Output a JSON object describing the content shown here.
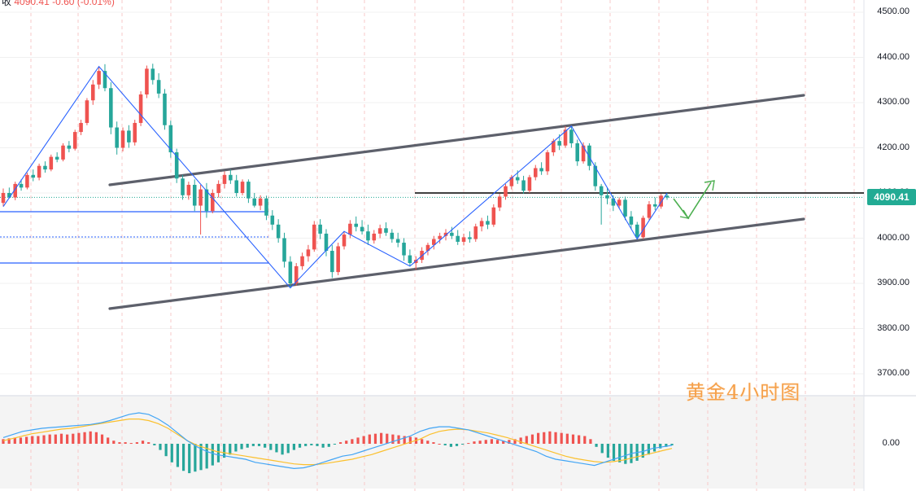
{
  "top_info": {
    "prefix": "收",
    "close": "4090.41",
    "change": "-0.60",
    "change_pct": "(-0.01%)"
  },
  "price_tag": "4090.41",
  "watermark": "黄金4小时图",
  "colors": {
    "up": "#ef5350",
    "down": "#26a69a",
    "channel": "#5d606b",
    "zigzag": "#2962ff",
    "forecast": "#4caf50",
    "macd_line": "#42a5f5",
    "signal_line": "#fbc02d",
    "level_line": "#000000",
    "last_price": "#22ab94"
  },
  "icons": [
    "forecast-arrow-icon"
  ],
  "chart_data": [
    {
      "type": "candlestick",
      "y_axis_ticks": [
        "4500.00",
        "4400.00",
        "4300.00",
        "4200.00",
        "4100.00",
        "4000.00",
        "3900.00",
        "3800.00",
        "3700.00"
      ],
      "ylim": [
        3680,
        4530
      ],
      "last_price": 4090.41,
      "grid": true,
      "ohlc": [
        [
          4078,
          4110,
          4070,
          4100
        ],
        [
          4100,
          4112,
          4088,
          4090
        ],
        [
          4090,
          4125,
          4084,
          4120
        ],
        [
          4120,
          4130,
          4105,
          4112
        ],
        [
          4112,
          4145,
          4108,
          4140
        ],
        [
          4140,
          4152,
          4126,
          4134
        ],
        [
          4134,
          4165,
          4128,
          4160
        ],
        [
          4160,
          4170,
          4145,
          4152
        ],
        [
          4152,
          4185,
          4148,
          4180
        ],
        [
          4180,
          4190,
          4168,
          4174
        ],
        [
          4174,
          4210,
          4170,
          4205
        ],
        [
          4205,
          4215,
          4190,
          4198
        ],
        [
          4198,
          4240,
          4194,
          4235
        ],
        [
          4235,
          4262,
          4228,
          4255
        ],
        [
          4255,
          4310,
          4250,
          4305
        ],
        [
          4305,
          4350,
          4295,
          4340
        ],
        [
          4340,
          4380,
          4330,
          4370
        ],
        [
          4370,
          4385,
          4325,
          4332
        ],
        [
          4332,
          4345,
          4230,
          4245
        ],
        [
          4245,
          4258,
          4185,
          4200
        ],
        [
          4200,
          4245,
          4192,
          4238
        ],
        [
          4238,
          4250,
          4200,
          4212
        ],
        [
          4212,
          4262,
          4205,
          4255
        ],
        [
          4255,
          4325,
          4248,
          4318
        ],
        [
          4318,
          4382,
          4310,
          4375
        ],
        [
          4375,
          4386,
          4340,
          4350
        ],
        [
          4350,
          4365,
          4310,
          4320
        ],
        [
          4320,
          4330,
          4240,
          4250
        ],
        [
          4250,
          4260,
          4178,
          4190
        ],
        [
          4190,
          4198,
          4122,
          4132
        ],
        [
          4132,
          4140,
          4085,
          4095
        ],
        [
          4095,
          4125,
          4085,
          4118
        ],
        [
          4118,
          4130,
          4060,
          4072
        ],
        [
          4072,
          4118,
          4008,
          4108
        ],
        [
          4108,
          4122,
          4045,
          4060
        ],
        [
          4060,
          4108,
          4055,
          4100
        ],
        [
          4100,
          4128,
          4090,
          4120
        ],
        [
          4120,
          4148,
          4110,
          4140
        ],
        [
          4140,
          4152,
          4120,
          4128
        ],
        [
          4128,
          4140,
          4092,
          4100
        ],
        [
          4100,
          4130,
          4095,
          4125
        ],
        [
          4125,
          4130,
          4078,
          4088
        ],
        [
          4088,
          4100,
          4068,
          4072
        ],
        [
          4072,
          4095,
          4062,
          4088
        ],
        [
          4088,
          4094,
          4040,
          4050
        ],
        [
          4050,
          4062,
          4018,
          4030
        ],
        [
          4030,
          4042,
          3990,
          4000
        ],
        [
          4000,
          4012,
          3935,
          3948
        ],
        [
          3948,
          3960,
          3890,
          3900
        ],
        [
          3900,
          3945,
          3895,
          3938
        ],
        [
          3938,
          3968,
          3930,
          3960
        ],
        [
          3960,
          3985,
          3948,
          3975
        ],
        [
          3975,
          4038,
          3970,
          4030
        ],
        [
          4030,
          4042,
          3998,
          4010
        ],
        [
          4010,
          4020,
          3960,
          3972
        ],
        [
          3972,
          3985,
          3912,
          3925
        ],
        [
          3925,
          3990,
          3918,
          3982
        ],
        [
          3982,
          4015,
          3975,
          4008
        ],
        [
          4008,
          4040,
          4000,
          4032
        ],
        [
          4032,
          4048,
          4015,
          4025
        ],
        [
          4025,
          4040,
          4008,
          4015
        ],
        [
          4015,
          4030,
          3985,
          3995
        ],
        [
          3995,
          4018,
          3988,
          4010
        ],
        [
          4010,
          4030,
          4000,
          4022
        ],
        [
          4022,
          4035,
          4005,
          4012
        ],
        [
          4012,
          4020,
          3990,
          3998
        ],
        [
          3998,
          4012,
          3980,
          3990
        ],
        [
          3990,
          4000,
          3950,
          3962
        ],
        [
          3962,
          3975,
          3938,
          3945
        ],
        [
          3945,
          3960,
          3930,
          3952
        ],
        [
          3952,
          3980,
          3945,
          3972
        ],
        [
          3972,
          3990,
          3962,
          3985
        ],
        [
          3985,
          4005,
          3975,
          3998
        ],
        [
          3998,
          4012,
          3988,
          4005
        ],
        [
          4005,
          4020,
          3995,
          4012
        ],
        [
          4012,
          4025,
          3998,
          4005
        ],
        [
          4005,
          4018,
          3985,
          3992
        ],
        [
          3992,
          4010,
          3984,
          4002
        ],
        [
          4002,
          4015,
          3990,
          3998
        ],
        [
          3998,
          4032,
          3992,
          4026
        ],
        [
          4026,
          4045,
          4015,
          4038
        ],
        [
          4038,
          4050,
          4020,
          4030
        ],
        [
          4030,
          4075,
          4025,
          4068
        ],
        [
          4068,
          4098,
          4060,
          4092
        ],
        [
          4092,
          4120,
          4085,
          4115
        ],
        [
          4115,
          4140,
          4108,
          4135
        ],
        [
          4135,
          4150,
          4120,
          4128
        ],
        [
          4128,
          4138,
          4098,
          4105
        ],
        [
          4105,
          4140,
          4100,
          4135
        ],
        [
          4135,
          4162,
          4128,
          4155
        ],
        [
          4155,
          4168,
          4140,
          4148
        ],
        [
          4148,
          4195,
          4140,
          4190
        ],
        [
          4190,
          4220,
          4182,
          4215
        ],
        [
          4215,
          4230,
          4195,
          4205
        ],
        [
          4205,
          4248,
          4200,
          4240
        ],
        [
          4240,
          4248,
          4200,
          4210
        ],
        [
          4210,
          4218,
          4160,
          4170
        ],
        [
          4170,
          4212,
          4165,
          4205
        ],
        [
          4205,
          4210,
          4150,
          4160
        ],
        [
          4160,
          4168,
          4105,
          4115
        ],
        [
          4115,
          4120,
          4030,
          4095
        ],
        [
          4095,
          4112,
          4075,
          4088
        ],
        [
          4088,
          4095,
          4060,
          4072
        ],
        [
          4072,
          4090,
          4065,
          4085
        ],
        [
          4085,
          4092,
          4040,
          4048
        ],
        [
          4048,
          4060,
          4020,
          4030
        ],
        [
          4030,
          4036,
          3998,
          4002
        ],
        [
          4002,
          4050,
          3998,
          4045
        ],
        [
          4045,
          4082,
          4040,
          4075
        ],
        [
          4075,
          4090,
          4062,
          4070
        ],
        [
          4070,
          4098,
          4065,
          4094
        ],
        [
          4094,
          4100,
          4085,
          4090
        ]
      ]
    },
    {
      "type": "macd",
      "y_axis_ticks": [
        "0.00"
      ],
      "histogram": [
        6,
        7,
        8,
        8,
        9,
        10,
        10,
        11,
        12,
        12,
        13,
        12,
        13,
        14,
        15,
        16,
        15,
        12,
        8,
        4,
        2,
        2,
        1,
        2,
        4,
        2,
        -2,
        -8,
        -16,
        -24,
        -30,
        -35,
        -38,
        -36,
        -34,
        -32,
        -28,
        -24,
        -18,
        -14,
        -10,
        -7,
        -5,
        -3,
        -3,
        -5,
        -8,
        -11,
        -14,
        -12,
        -8,
        -5,
        -3,
        -2,
        -3,
        -5,
        -4,
        -1,
        2,
        4,
        6,
        8,
        10,
        12,
        13,
        14,
        13,
        12,
        11,
        10,
        9,
        8,
        6,
        4,
        2,
        0,
        -2,
        -4,
        -3,
        -1,
        1,
        3,
        4,
        5,
        6,
        5,
        4,
        5,
        6,
        8,
        10,
        12,
        14,
        15,
        16,
        15,
        14,
        13,
        12,
        11,
        10,
        6,
        -4,
        -12,
        -18,
        -22,
        -24,
        -26,
        -25,
        -22,
        -18,
        -14,
        -10,
        -6,
        -4,
        -2
      ],
      "macd_line": [
        8,
        12,
        16,
        18,
        20,
        21,
        22,
        23,
        24,
        25,
        27,
        30,
        34,
        38,
        40,
        38,
        32,
        24,
        14,
        4,
        -4,
        -10,
        -14,
        -16,
        -18,
        -20,
        -24,
        -26,
        -28,
        -30,
        -32,
        -31,
        -28,
        -24,
        -20,
        -16,
        -14,
        -10,
        -6,
        -2,
        2,
        6,
        10,
        16,
        20,
        22,
        22,
        20,
        18,
        14,
        10,
        6,
        2,
        -2,
        -6,
        -10,
        -16,
        -20,
        -22,
        -24,
        -26,
        -28,
        -24,
        -20,
        -16,
        -12,
        -10,
        -6,
        -4,
        -2
      ],
      "signal_line": [
        4,
        7,
        10,
        13,
        15,
        17,
        19,
        20,
        22,
        24,
        26,
        28,
        30,
        32,
        32,
        30,
        26,
        20,
        12,
        4,
        -2,
        -6,
        -10,
        -12,
        -14,
        -16,
        -18,
        -20,
        -22,
        -24,
        -26,
        -27,
        -27,
        -26,
        -24,
        -22,
        -20,
        -17,
        -14,
        -10,
        -6,
        -2,
        2,
        6,
        12,
        16,
        18,
        19,
        18,
        16,
        14,
        11,
        8,
        4,
        0,
        -4,
        -8,
        -12,
        -16,
        -19,
        -21,
        -23,
        -24,
        -23,
        -21,
        -18,
        -15,
        -12,
        -9,
        -6
      ]
    }
  ]
}
